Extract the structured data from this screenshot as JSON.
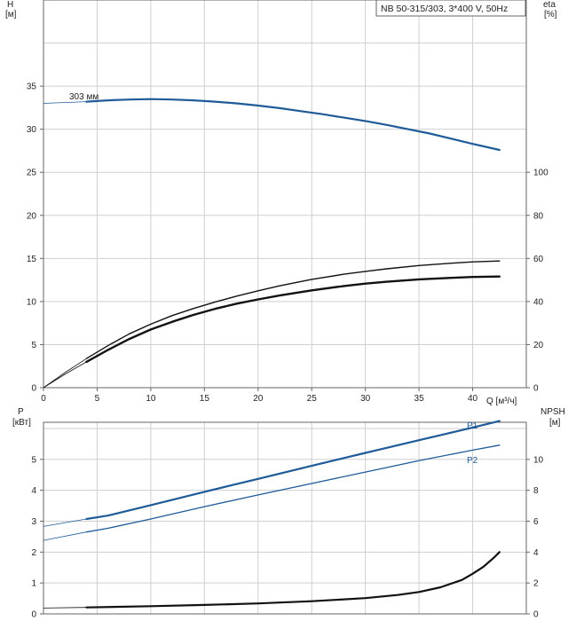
{
  "colors": {
    "blue": "#1f5a99",
    "black": "#111111",
    "grid": "#cfcfcf"
  },
  "chart_data": [
    {
      "type": "line",
      "title": "NB 50-315/303, 3*400 V, 50Hz",
      "xlabel": "Q [м³/ч]",
      "xlim": [
        0,
        45
      ],
      "x_ticks": [
        "0",
        "5",
        "10",
        "15",
        "20",
        "25",
        "30",
        "35",
        "40"
      ],
      "ylabel_left": [
        "H",
        "[м]"
      ],
      "ylim_left": [
        0,
        45
      ],
      "y_ticks_left": [
        "0",
        "5",
        "10",
        "15",
        "20",
        "25",
        "30",
        "35"
      ],
      "ylabel_right": [
        "eta",
        "[%]"
      ],
      "ylim_right": [
        0,
        180
      ],
      "y_ticks_right": [
        "0",
        "20",
        "40",
        "60",
        "80",
        "100"
      ],
      "annotations": [
        {
          "text": "303 мм"
        }
      ],
      "series": [
        {
          "axis": "left",
          "color": "blue",
          "width": 2.2,
          "x": [
            4,
            6,
            8,
            10,
            12,
            14,
            16,
            18,
            20,
            22,
            24,
            26,
            28,
            30,
            32,
            34,
            36,
            38,
            40,
            42.5
          ],
          "y": [
            33.2,
            33.35,
            33.45,
            33.5,
            33.45,
            33.35,
            33.2,
            33.0,
            32.75,
            32.45,
            32.1,
            31.75,
            31.35,
            30.95,
            30.5,
            30.0,
            29.5,
            28.9,
            28.3,
            27.6
          ]
        },
        {
          "axis": "left",
          "color": "blue",
          "width": 0.8,
          "x": [
            0,
            4
          ],
          "y": [
            33.0,
            33.2
          ]
        },
        {
          "axis": "right",
          "color": "black",
          "width": 1.4,
          "x": [
            4,
            6,
            8,
            10,
            12,
            14,
            16,
            18,
            20,
            22,
            25,
            28,
            30,
            32,
            35,
            38,
            40,
            42.5
          ],
          "y": [
            13.5,
            19.5,
            25.0,
            29.5,
            33.5,
            36.8,
            39.8,
            42.5,
            45.0,
            47.3,
            50.3,
            52.7,
            54.0,
            55.2,
            56.7,
            57.8,
            58.4,
            58.8
          ]
        },
        {
          "axis": "right",
          "color": "black",
          "width": 0.8,
          "x": [
            0,
            2,
            4
          ],
          "y": [
            0,
            7.0,
            13.5
          ]
        },
        {
          "axis": "right",
          "color": "black",
          "width": 2.4,
          "x": [
            4,
            6,
            8,
            10,
            12,
            14,
            16,
            18,
            20,
            22,
            25,
            28,
            30,
            32,
            35,
            38,
            40,
            42.5
          ],
          "y": [
            12.0,
            17.5,
            22.6,
            27.0,
            30.6,
            33.8,
            36.6,
            39.0,
            41.0,
            42.8,
            45.2,
            47.2,
            48.3,
            49.2,
            50.3,
            51.0,
            51.4,
            51.6
          ]
        },
        {
          "axis": "right",
          "color": "black",
          "width": 0.8,
          "x": [
            0,
            2,
            4
          ],
          "y": [
            0,
            6.2,
            12.0
          ]
        }
      ]
    },
    {
      "type": "line",
      "xlim": [
        0,
        45
      ],
      "ylabel_left": [
        "P",
        "[кВт]"
      ],
      "ylim_left": [
        0,
        6.2
      ],
      "y_ticks_left": [
        "0",
        "1",
        "2",
        "3",
        "4",
        "5"
      ],
      "ylabel_right": [
        "NPSH",
        "[м]"
      ],
      "ylim_right": [
        0,
        12.4
      ],
      "y_ticks_right": [
        "0",
        "2",
        "4",
        "6",
        "8",
        "10"
      ],
      "series": [
        {
          "name": "P1",
          "axis": "left",
          "color": "blue",
          "width": 2.2,
          "x": [
            4,
            6,
            10,
            15,
            20,
            25,
            30,
            35,
            40,
            42.5
          ],
          "y": [
            3.07,
            3.18,
            3.52,
            3.95,
            4.37,
            4.79,
            5.21,
            5.62,
            6.03,
            6.24
          ]
        },
        {
          "name": "",
          "axis": "left",
          "color": "blue",
          "width": 0.8,
          "x": [
            0,
            4
          ],
          "y": [
            2.83,
            3.07
          ]
        },
        {
          "name": "P2",
          "axis": "left",
          "color": "blue",
          "width": 1.3,
          "x": [
            4,
            6,
            10,
            15,
            20,
            25,
            30,
            35,
            40,
            42.5
          ],
          "y": [
            2.65,
            2.77,
            3.07,
            3.47,
            3.85,
            4.22,
            4.59,
            4.96,
            5.3,
            5.46
          ]
        },
        {
          "name": "",
          "axis": "left",
          "color": "blue",
          "width": 0.8,
          "x": [
            0,
            4
          ],
          "y": [
            2.38,
            2.65
          ]
        },
        {
          "name": "",
          "axis": "right",
          "color": "black",
          "width": 2.2,
          "x": [
            4,
            10,
            15,
            20,
            25,
            30,
            33,
            35,
            37,
            39,
            40,
            41,
            42,
            42.5
          ],
          "y": [
            0.42,
            0.5,
            0.58,
            0.68,
            0.82,
            1.02,
            1.22,
            1.42,
            1.72,
            2.2,
            2.6,
            3.05,
            3.65,
            4.0
          ]
        },
        {
          "name": "",
          "axis": "right",
          "color": "black",
          "width": 0.8,
          "x": [
            0,
            4
          ],
          "y": [
            0.38,
            0.42
          ]
        }
      ]
    }
  ]
}
